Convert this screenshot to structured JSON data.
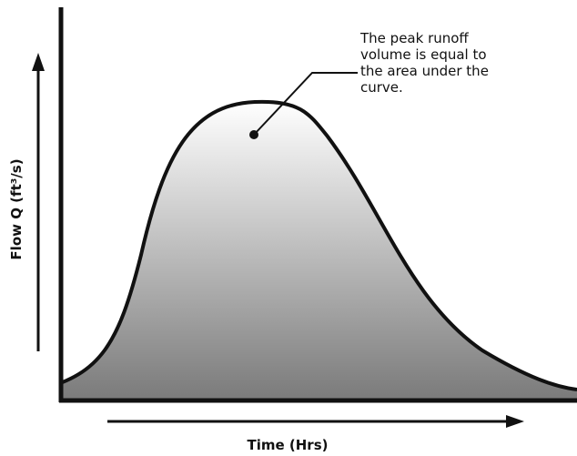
{
  "annotation": {
    "lines": [
      "The peak runoff",
      "volume is equal to",
      "the area under the",
      "curve."
    ]
  },
  "y_axis_label": "Flow Q (ft³/s)",
  "x_axis_label": "Time (Hrs)"
}
